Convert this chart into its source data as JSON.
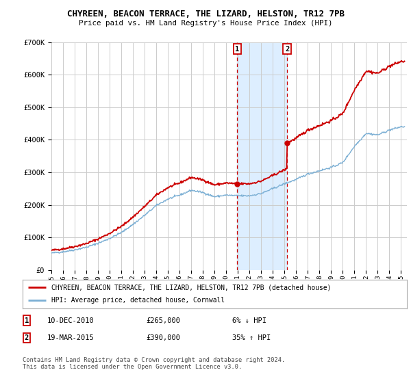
{
  "title": "CHYREEN, BEACON TERRACE, THE LIZARD, HELSTON, TR12 7PB",
  "subtitle": "Price paid vs. HM Land Registry's House Price Index (HPI)",
  "ylim": [
    0,
    700000
  ],
  "xlim_start": 1995.0,
  "xlim_end": 2025.5,
  "legend_line1": "CHYREEN, BEACON TERRACE, THE LIZARD, HELSTON, TR12 7PB (detached house)",
  "legend_line2": "HPI: Average price, detached house, Cornwall",
  "note1_date": "10-DEC-2010",
  "note1_price": "£265,000",
  "note1_change": "6% ↓ HPI",
  "note2_date": "19-MAR-2015",
  "note2_price": "£390,000",
  "note2_change": "35% ↑ HPI",
  "footer": "Contains HM Land Registry data © Crown copyright and database right 2024.\nThis data is licensed under the Open Government Licence v3.0.",
  "transaction1_x": 2010.95,
  "transaction1_y": 265000,
  "transaction2_x": 2015.22,
  "transaction2_y": 390000,
  "hpi_color": "#7bafd4",
  "price_color": "#cc0000",
  "shade_color": "#ddeeff",
  "marker_box_color": "#cc0000",
  "background_color": "#ffffff",
  "grid_color": "#cccccc"
}
